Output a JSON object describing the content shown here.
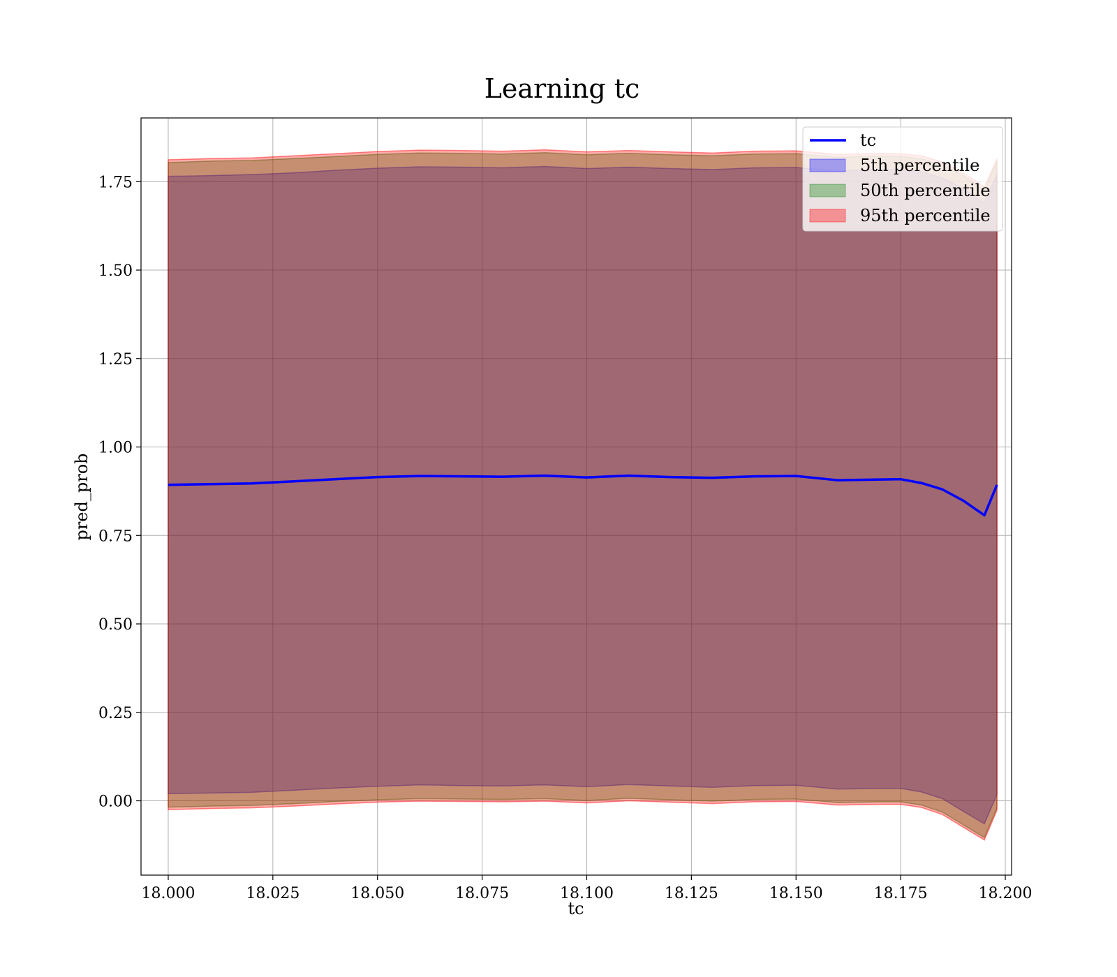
{
  "chart_data": {
    "type": "area",
    "title": "Learning tc",
    "xlabel": "tc",
    "ylabel": "pred_prob",
    "xlim": [
      17.9935,
      18.2015
    ],
    "ylim": [
      -0.21,
      1.93
    ],
    "xticks": [
      18.0,
      18.025,
      18.05,
      18.075,
      18.1,
      18.125,
      18.15,
      18.175,
      18.2
    ],
    "xtick_labels": [
      "18.000",
      "18.025",
      "18.050",
      "18.075",
      "18.100",
      "18.125",
      "18.150",
      "18.175",
      "18.200"
    ],
    "yticks": [
      0.0,
      0.25,
      0.5,
      0.75,
      1.0,
      1.25,
      1.5,
      1.75
    ],
    "ytick_labels": [
      "0.00",
      "0.25",
      "0.50",
      "0.75",
      "1.00",
      "1.25",
      "1.50",
      "1.75"
    ],
    "grid": true,
    "legend_position": "top-right",
    "x": [
      18.0,
      18.01,
      18.02,
      18.03,
      18.04,
      18.05,
      18.06,
      18.07,
      18.08,
      18.09,
      18.1,
      18.11,
      18.12,
      18.13,
      18.14,
      18.15,
      18.16,
      18.17,
      18.175,
      18.18,
      18.185,
      18.19,
      18.195,
      18.198
    ],
    "line": {
      "name": "tc",
      "color": "#0000ff",
      "values": [
        0.893,
        0.895,
        0.897,
        0.903,
        0.909,
        0.915,
        0.918,
        0.917,
        0.916,
        0.919,
        0.914,
        0.919,
        0.915,
        0.913,
        0.917,
        0.918,
        0.906,
        0.908,
        0.909,
        0.898,
        0.88,
        0.848,
        0.807,
        0.893
      ]
    },
    "bands": [
      {
        "name": "5th percentile",
        "color": "#0000ff",
        "upper": [
          1.765,
          1.767,
          1.77,
          1.775,
          1.782,
          1.788,
          1.792,
          1.791,
          1.789,
          1.793,
          1.787,
          1.791,
          1.787,
          1.784,
          1.789,
          1.79,
          1.78,
          1.784,
          1.784,
          1.778,
          1.76,
          1.73,
          1.69,
          1.77
        ],
        "lower": [
          0.02,
          0.022,
          0.024,
          0.03,
          0.036,
          0.041,
          0.045,
          0.043,
          0.042,
          0.045,
          0.04,
          0.046,
          0.042,
          0.038,
          0.043,
          0.044,
          0.033,
          0.035,
          0.035,
          0.025,
          0.006,
          -0.03,
          -0.065,
          0.018
        ]
      },
      {
        "name": "50th percentile",
        "color": "#008000",
        "upper": [
          1.804,
          1.808,
          1.81,
          1.815,
          1.821,
          1.827,
          1.831,
          1.83,
          1.828,
          1.832,
          1.826,
          1.83,
          1.826,
          1.823,
          1.828,
          1.829,
          1.819,
          1.822,
          1.821,
          1.815,
          1.797,
          1.767,
          1.727,
          1.807
        ],
        "lower": [
          -0.018,
          -0.015,
          -0.013,
          -0.008,
          -0.002,
          0.003,
          0.006,
          0.005,
          0.004,
          0.006,
          0.001,
          0.007,
          0.003,
          -0.001,
          0.004,
          0.005,
          -0.005,
          -0.003,
          -0.003,
          -0.012,
          -0.032,
          -0.068,
          -0.104,
          -0.02
        ]
      },
      {
        "name": "95th percentile",
        "color": "#ff0000",
        "upper": [
          1.812,
          1.815,
          1.817,
          1.823,
          1.829,
          1.835,
          1.839,
          1.838,
          1.836,
          1.84,
          1.834,
          1.838,
          1.834,
          1.831,
          1.836,
          1.837,
          1.827,
          1.83,
          1.829,
          1.823,
          1.805,
          1.775,
          1.735,
          1.815
        ],
        "lower": [
          -0.025,
          -0.022,
          -0.02,
          -0.015,
          -0.009,
          -0.004,
          -0.001,
          -0.002,
          -0.003,
          -0.001,
          -0.006,
          0.0,
          -0.004,
          -0.008,
          -0.003,
          -0.002,
          -0.012,
          -0.01,
          -0.01,
          -0.019,
          -0.039,
          -0.075,
          -0.111,
          -0.027
        ]
      }
    ]
  }
}
